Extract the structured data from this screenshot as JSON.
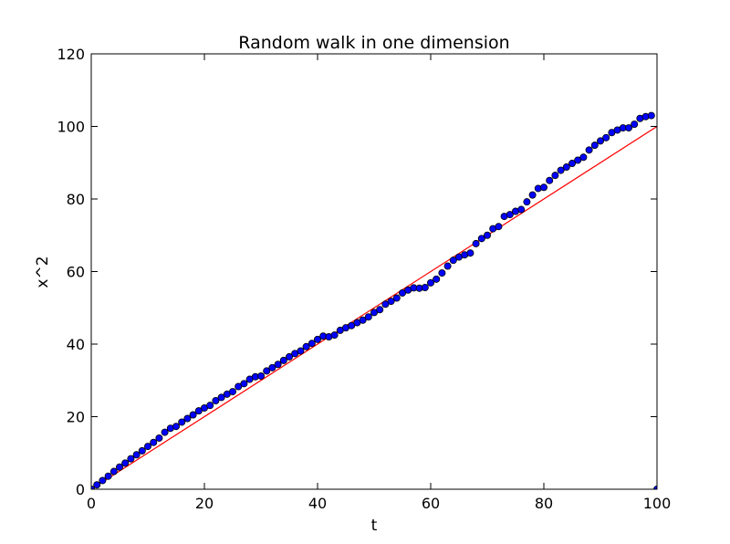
{
  "chart_data": {
    "type": "scatter",
    "title": "Random walk in one dimension",
    "xlabel": "t",
    "ylabel": "x^2",
    "xlim": [
      0,
      100
    ],
    "ylim": [
      0,
      120
    ],
    "xticks": [
      "0",
      "20",
      "40",
      "60",
      "80",
      "100"
    ],
    "yticks": [
      "0",
      "20",
      "40",
      "60",
      "80",
      "100",
      "120"
    ],
    "grid": false,
    "legend": "none",
    "series": [
      {
        "kind": "scatter",
        "color": "#0000ff",
        "edge_color": "#000000",
        "x": [
          0,
          1,
          2,
          3,
          4,
          5,
          6,
          7,
          8,
          9,
          10,
          11,
          12,
          13,
          14,
          15,
          16,
          17,
          18,
          19,
          20,
          21,
          22,
          23,
          24,
          25,
          26,
          27,
          28,
          29,
          30,
          31,
          32,
          33,
          34,
          35,
          36,
          37,
          38,
          39,
          40,
          41,
          42,
          43,
          44,
          45,
          46,
          47,
          48,
          49,
          50,
          51,
          52,
          53,
          54,
          55,
          56,
          57,
          58,
          59,
          60,
          61,
          62,
          63,
          64,
          65,
          66,
          67,
          68,
          69,
          70,
          71,
          72,
          73,
          74,
          75,
          76,
          77,
          78,
          79,
          80,
          81,
          82,
          83,
          84,
          85,
          86,
          87,
          88,
          89,
          90,
          91,
          92,
          93,
          94,
          95,
          96,
          97,
          98,
          99,
          100
        ],
        "y": [
          0,
          1.2,
          2.4,
          3.6,
          4.9,
          6.1,
          7.2,
          8.4,
          9.5,
          10.6,
          11.8,
          12.9,
          14.1,
          15.7,
          16.8,
          17.3,
          18.5,
          19.5,
          20.5,
          21.6,
          22.4,
          23.1,
          24.4,
          25.3,
          26.2,
          26.9,
          28.3,
          29.1,
          30.3,
          31.0,
          31.2,
          32.6,
          33.5,
          34.4,
          35.5,
          36.5,
          37.4,
          38.1,
          39.3,
          40.2,
          41.3,
          42.2,
          42.0,
          42.5,
          43.8,
          44.5,
          45.1,
          45.9,
          46.6,
          47.5,
          48.7,
          49.5,
          51.0,
          51.8,
          52.7,
          54.1,
          54.9,
          55.5,
          55.4,
          55.6,
          56.9,
          57.9,
          59.6,
          61.5,
          63.1,
          64.0,
          64.6,
          65.1,
          67.7,
          69.1,
          70.0,
          71.8,
          72.4,
          75.2,
          75.7,
          76.6,
          77.1,
          79.2,
          81.1,
          82.9,
          83.2,
          85.1,
          86.5,
          87.9,
          88.8,
          89.8,
          90.7,
          91.5,
          93.5,
          94.8,
          96.0,
          96.9,
          98.3,
          99.0,
          99.6,
          99.6,
          100.6,
          102.2,
          102.7,
          103.0,
          0
        ]
      },
      {
        "kind": "line",
        "color": "#ff0000",
        "x": [
          0,
          100
        ],
        "y": [
          0,
          100
        ]
      }
    ]
  }
}
